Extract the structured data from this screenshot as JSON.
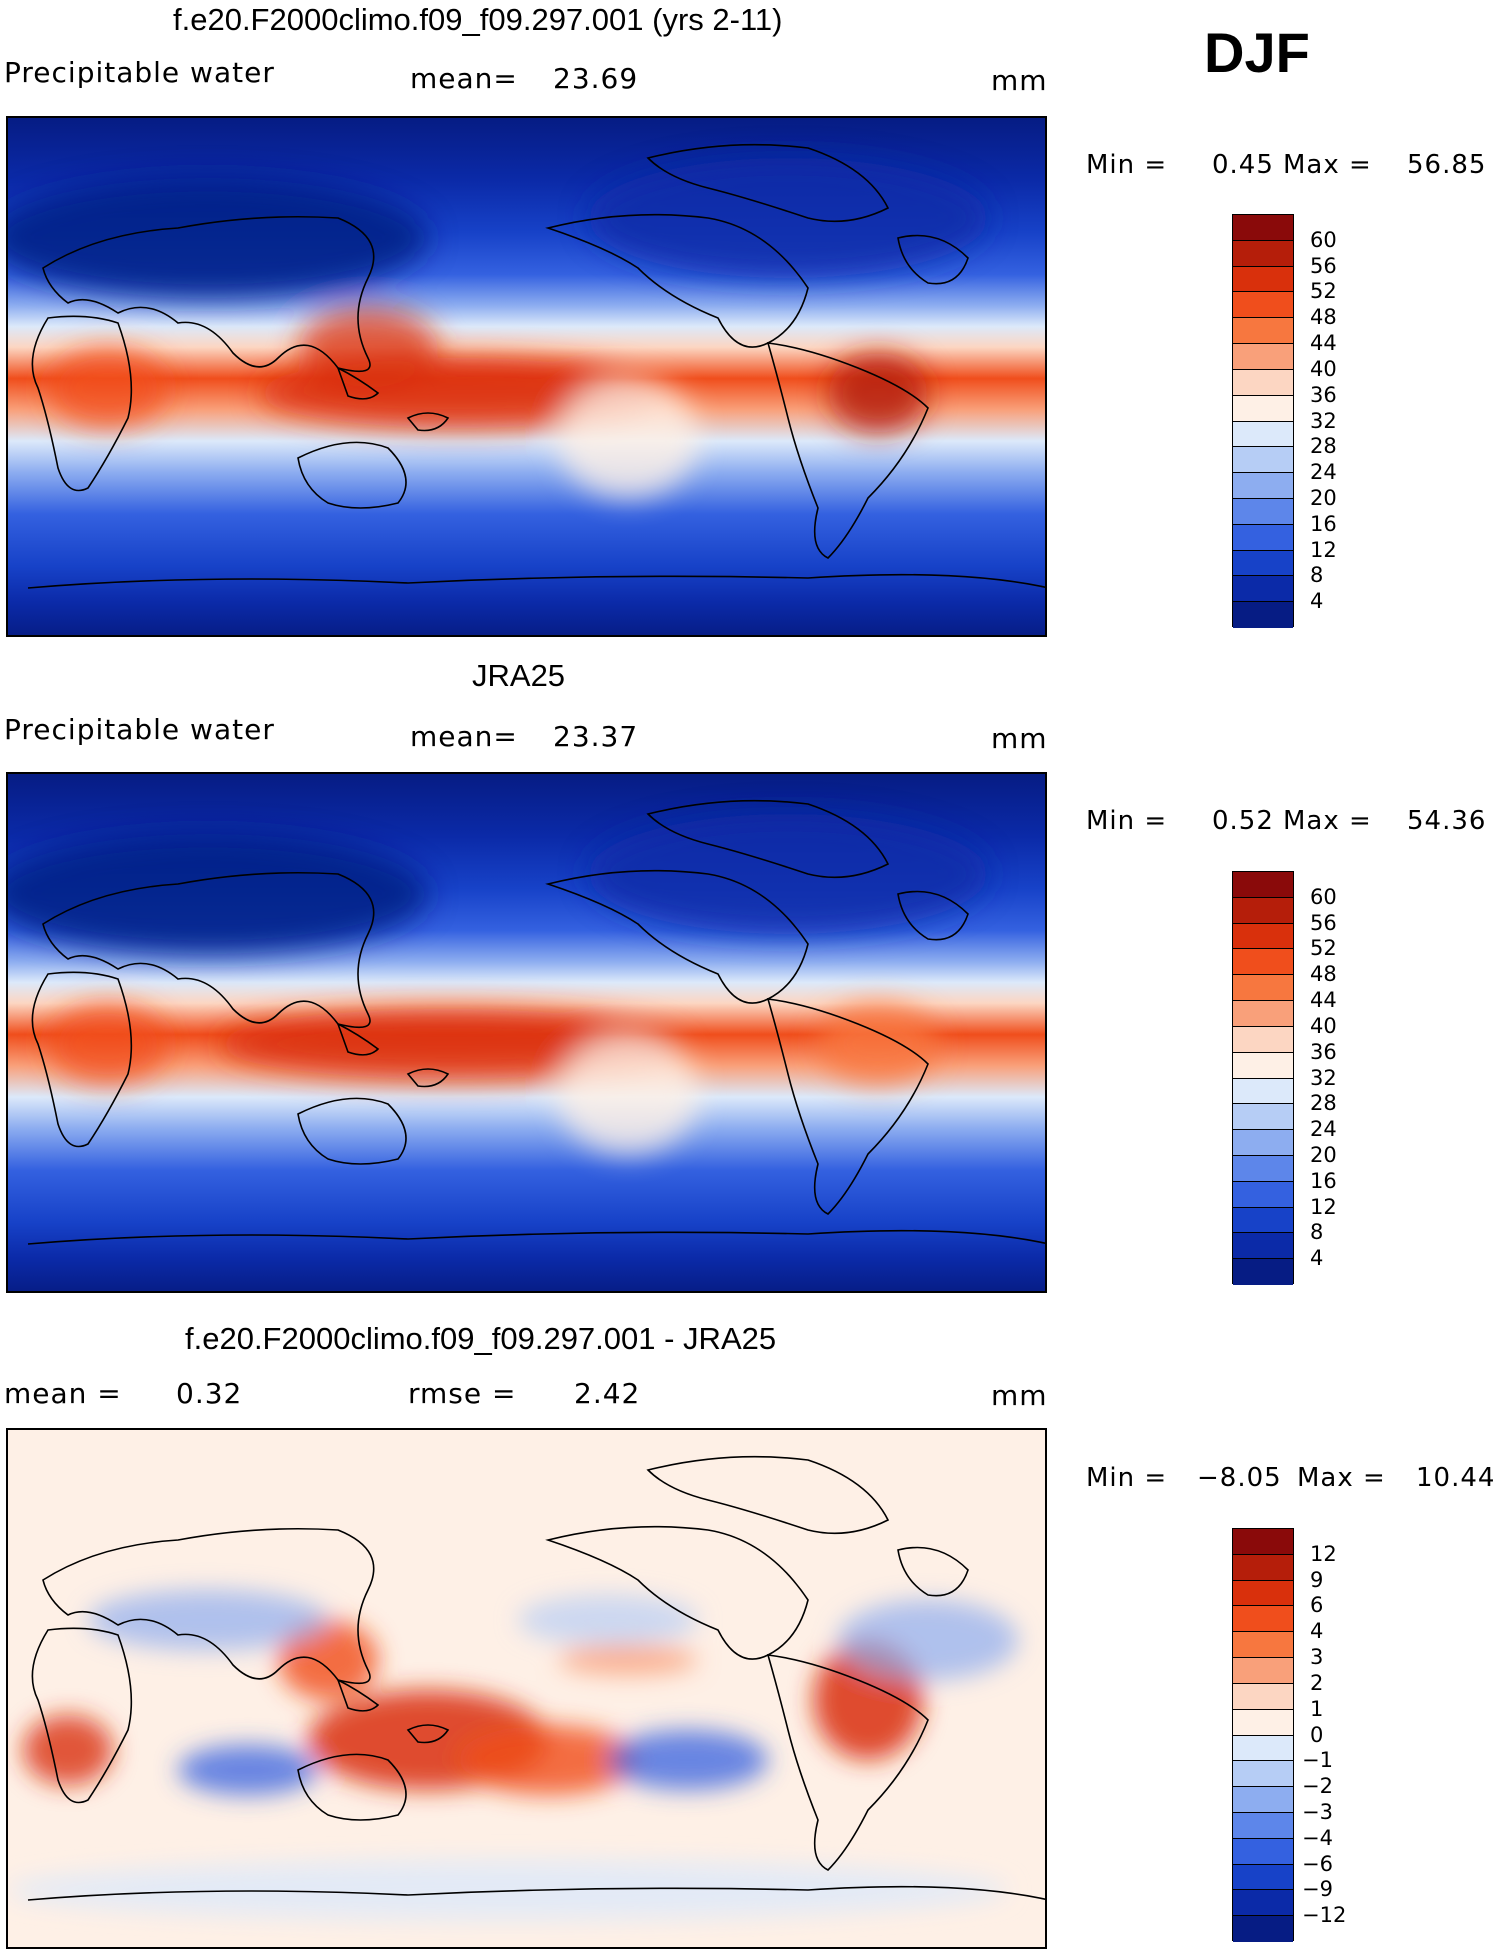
{
  "season": "DJF",
  "panels": [
    {
      "title": "f.e20.F2000climo.f09_f09.297.001 (yrs 2-11)",
      "left_label": "Precipitable water",
      "center_label": "mean=",
      "center_value": "23.69",
      "right_label": "",
      "right_value": "",
      "units": "mm",
      "min_label": "Min =",
      "min_value": "0.45",
      "max_label": "Max =",
      "max_value": "56.85",
      "legend_labels": [
        "60",
        "56",
        "52",
        "48",
        "44",
        "40",
        "36",
        "32",
        "28",
        "24",
        "20",
        "16",
        "12",
        "8",
        "4"
      ],
      "legend_colors": [
        "#8a0a0a",
        "#b51e0a",
        "#d9300c",
        "#f04e1c",
        "#f7773f",
        "#f9a07a",
        "#fcd6c2",
        "#fef0e6",
        "#dce9fa",
        "#b6cdf5",
        "#8dadf0",
        "#5d86ea",
        "#3461e0",
        "#1742c8",
        "#0b2aa8",
        "#061c84"
      ]
    },
    {
      "title": "JRA25",
      "left_label": "Precipitable water",
      "center_label": "mean=",
      "center_value": "23.37",
      "right_label": "",
      "right_value": "",
      "units": "mm",
      "min_label": "Min =",
      "min_value": "0.52",
      "max_label": "Max =",
      "max_value": "54.36",
      "legend_labels": [
        "60",
        "56",
        "52",
        "48",
        "44",
        "40",
        "36",
        "32",
        "28",
        "24",
        "20",
        "16",
        "12",
        "8",
        "4"
      ],
      "legend_colors": [
        "#8a0a0a",
        "#b51e0a",
        "#d9300c",
        "#f04e1c",
        "#f7773f",
        "#f9a07a",
        "#fcd6c2",
        "#fef0e6",
        "#dce9fa",
        "#b6cdf5",
        "#8dadf0",
        "#5d86ea",
        "#3461e0",
        "#1742c8",
        "#0b2aa8",
        "#061c84"
      ]
    },
    {
      "title": "f.e20.F2000climo.f09_f09.297.001 - JRA25",
      "left_label": "mean =",
      "left_value": "0.32",
      "center_label": "rmse =",
      "center_value": "2.42",
      "units": "mm",
      "min_label": "Min =",
      "min_value": "−8.05",
      "max_label": "Max =",
      "max_value": "10.44",
      "legend_labels": [
        "12",
        "9",
        "6",
        "4",
        "3",
        "2",
        "1",
        "0",
        "−1",
        "−2",
        "−3",
        "−4",
        "−6",
        "−9",
        "−12"
      ],
      "legend_colors": [
        "#8a0a0a",
        "#b51e0a",
        "#d9300c",
        "#f04e1c",
        "#f7773f",
        "#f9a07a",
        "#fcd6c2",
        "#fef0e6",
        "#dce9fa",
        "#b6cdf5",
        "#8dadf0",
        "#5d86ea",
        "#3461e0",
        "#1742c8",
        "#0b2aa8",
        "#061c84"
      ]
    }
  ]
}
